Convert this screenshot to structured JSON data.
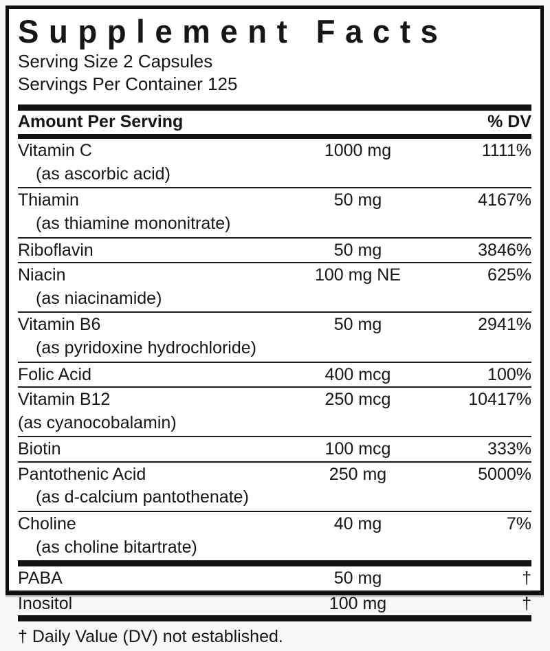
{
  "label": {
    "title": "Supplement Facts",
    "serving_size": "Serving Size 2 Capsules",
    "servings_per_container": "Servings Per Container 125",
    "header": {
      "amount_col": "Amount Per Serving",
      "dv_col": "% DV"
    },
    "rows": [
      {
        "name": "Vitamin C",
        "source": "(as ascorbic acid)",
        "amount": "1000 mg",
        "dv": "1111%"
      },
      {
        "name": "Thiamin",
        "source": "(as thiamine mononitrate)",
        "amount": "50 mg",
        "dv": "4167%"
      },
      {
        "name": "Riboflavin",
        "source": "",
        "amount": "50 mg",
        "dv": "3846%"
      },
      {
        "name": "Niacin",
        "source": "(as niacinamide)",
        "amount": "100 mg NE",
        "dv": "625%"
      },
      {
        "name": "Vitamin B6",
        "source": "(as pyridoxine hydrochloride)",
        "amount": "50 mg",
        "dv": "2941%"
      },
      {
        "name": "Folic Acid",
        "source": "",
        "amount": "400 mcg",
        "dv": "100%"
      },
      {
        "name": "Vitamin B12",
        "source": "(as cyanocobalamin)",
        "amount": "250 mcg",
        "dv": "10417%"
      },
      {
        "name": "Biotin",
        "source": "",
        "amount": "100 mcg",
        "dv": "333%"
      },
      {
        "name": "Pantothenic Acid",
        "source": "(as d-calcium pantothenate)",
        "amount": "250 mg",
        "dv": "5000%"
      },
      {
        "name": "Choline",
        "source": "(as choline bitartrate)",
        "amount": "40 mg",
        "dv": "7%"
      }
    ],
    "other_rows": [
      {
        "name": "PABA",
        "amount": "50 mg",
        "dv": "†"
      },
      {
        "name": "Inositol",
        "amount": "100 mg",
        "dv": "†"
      }
    ],
    "footnote": "† Daily Value (DV) not established."
  }
}
